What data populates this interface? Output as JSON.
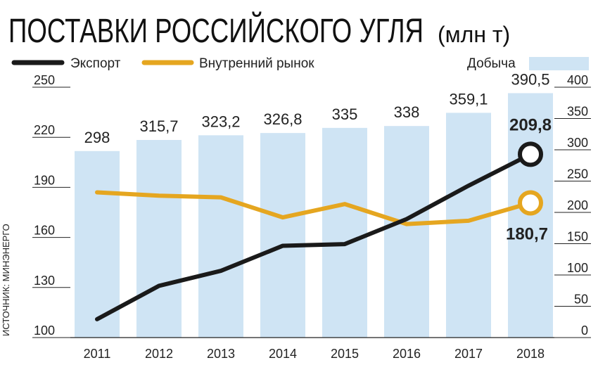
{
  "header": {
    "title": "ПОСТАВКИ РОССИЙСКОГО УГЛЯ",
    "unit": "(млн т)"
  },
  "source": "ИСТОЧНИК: МИНЭНЕРГО",
  "legend": {
    "export": "Экспорт",
    "domestic": "Внутренний рынок",
    "production": "Добыча"
  },
  "colors": {
    "export": "#1a1a1a",
    "domestic": "#e5a620",
    "production": "#cfe4f4"
  },
  "chart_data": {
    "type": "bar",
    "title": "ПОСТАВКИ РОССИЙСКОГО УГЛЯ (млн т)",
    "categories": [
      "2011",
      "2012",
      "2013",
      "2014",
      "2015",
      "2016",
      "2017",
      "2018"
    ],
    "series": [
      {
        "name": "Добыча",
        "type": "bar",
        "axis": "right",
        "values": [
          298,
          315.7,
          323.2,
          326.8,
          335,
          338,
          359.1,
          390.5
        ],
        "labels": [
          "298",
          "315,7",
          "323,2",
          "326,8",
          "335",
          "338",
          "359,1",
          "390,5"
        ]
      },
      {
        "name": "Экспорт",
        "type": "line",
        "axis": "left",
        "values": [
          111,
          131,
          140,
          155,
          156,
          171,
          191,
          209.8
        ],
        "end_label": "209,8"
      },
      {
        "name": "Внутренний рынок",
        "type": "line",
        "axis": "left",
        "values": [
          187,
          185,
          184,
          172,
          180,
          168,
          170,
          180.7
        ],
        "end_label": "180,7"
      }
    ],
    "y_left": {
      "min": 100,
      "max": 250,
      "ticks": [
        "100",
        "130",
        "160",
        "190",
        "220",
        "250"
      ]
    },
    "y_right": {
      "min": 0,
      "max": 400,
      "ticks": [
        "0",
        "50",
        "100",
        "150",
        "200",
        "250",
        "300",
        "350",
        "400"
      ]
    },
    "grid": false,
    "legend_position": "top"
  }
}
